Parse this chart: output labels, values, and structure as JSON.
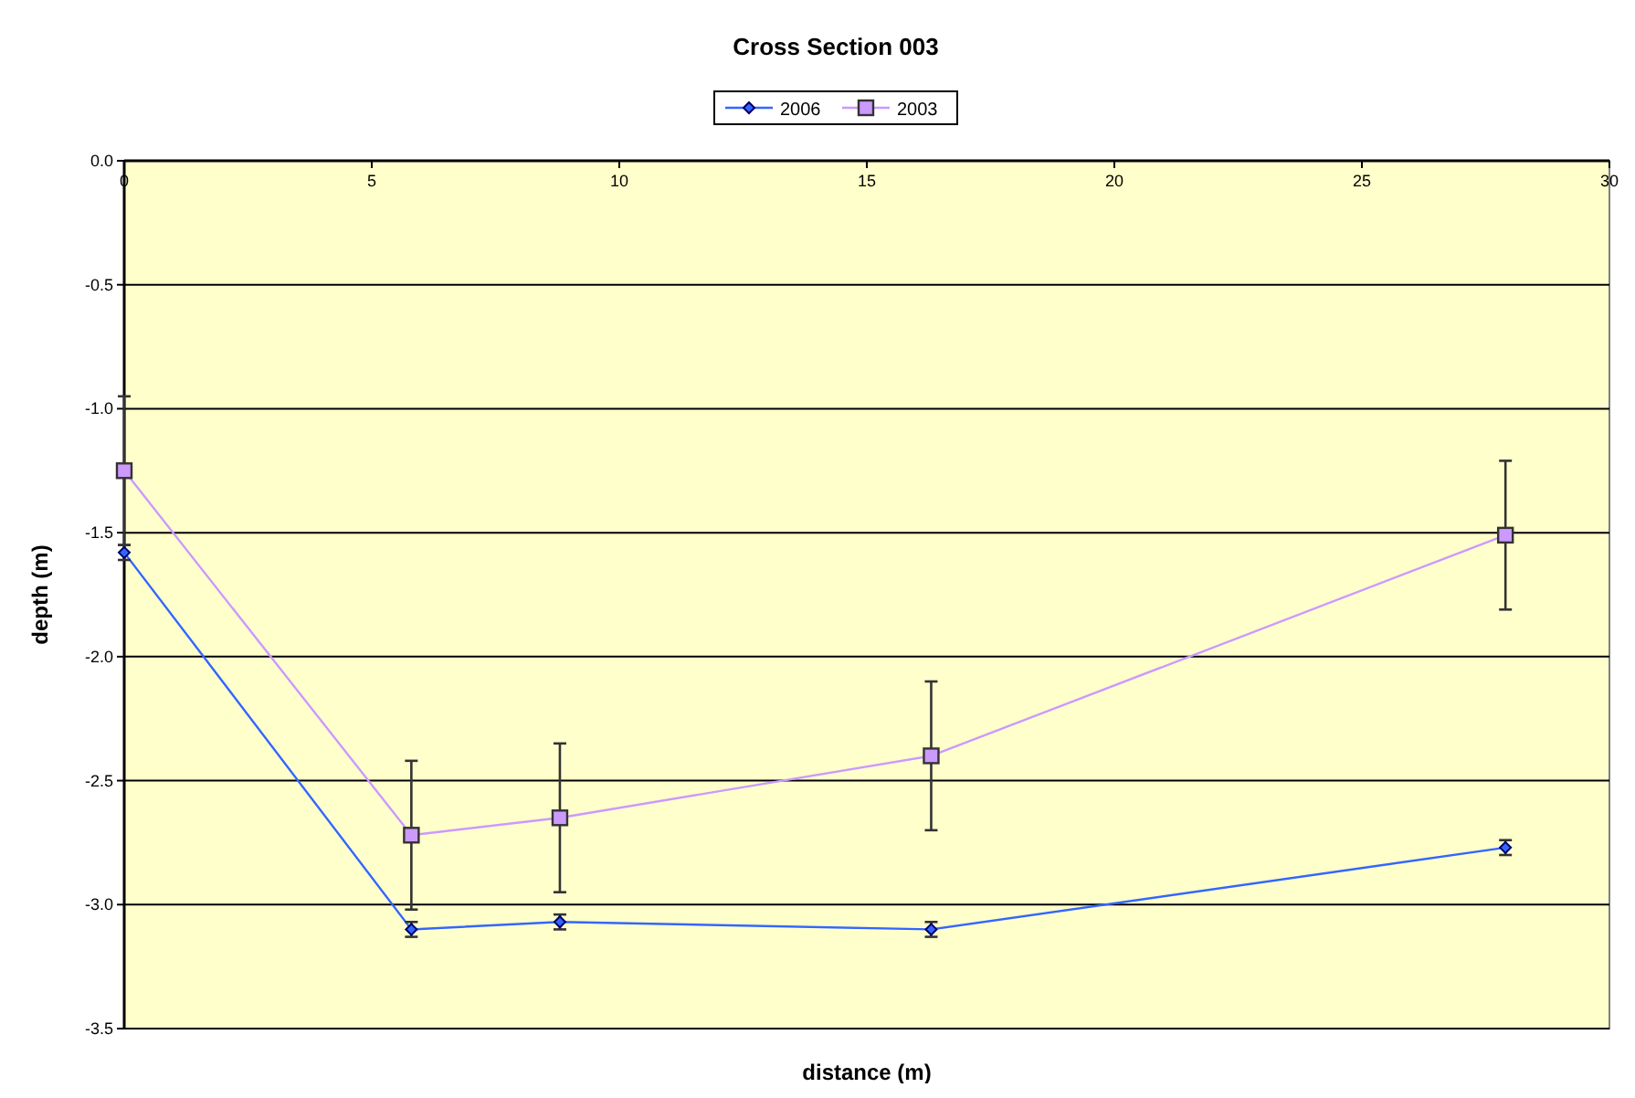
{
  "chart_data": {
    "type": "line",
    "title": "Cross Section 003",
    "xlabel": "distance (m)",
    "ylabel": "depth (m)",
    "xlim": [
      0,
      30
    ],
    "xticks": [
      0,
      5,
      10,
      15,
      20,
      25,
      30
    ],
    "ylim": [
      -3.5,
      0
    ],
    "yticks": [
      {
        "value": 0,
        "label": "0.0"
      },
      {
        "value": -0.5,
        "label": "-0.5"
      },
      {
        "value": -1,
        "label": "-1.0"
      },
      {
        "value": -1.5,
        "label": "-1.5"
      },
      {
        "value": -2,
        "label": "-2.0"
      },
      {
        "value": -2.5,
        "label": "-2.5"
      },
      {
        "value": -3,
        "label": "-3.0"
      },
      {
        "value": -3.5,
        "label": "-3.5"
      }
    ],
    "grid": "y",
    "legend": "top",
    "series": [
      {
        "name": "2006",
        "color": "#3366ff",
        "marker": "diamond",
        "x": [
          0,
          5.8,
          8.8,
          16.3,
          27.9
        ],
        "values": [
          -1.58,
          -3.1,
          -3.07,
          -3.1,
          -2.77
        ],
        "errors": [
          0.03,
          0.03,
          0.03,
          0.03,
          0.03
        ]
      },
      {
        "name": "2003",
        "color": "#cc99ff",
        "marker": "square",
        "x": [
          0,
          5.8,
          8.8,
          16.3,
          27.9
        ],
        "values": [
          -1.25,
          -2.72,
          -2.65,
          -2.4,
          -1.51
        ],
        "errors": [
          0.3,
          0.3,
          0.3,
          0.3,
          0.3
        ]
      }
    ]
  }
}
